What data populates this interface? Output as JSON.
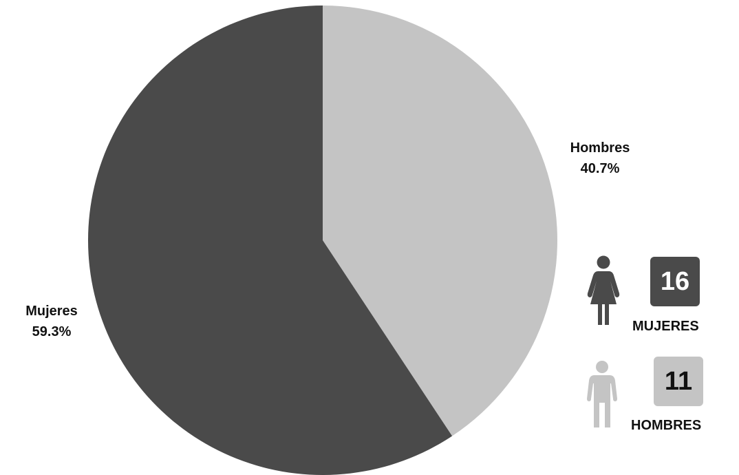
{
  "chart_data": {
    "type": "pie",
    "slices": [
      {
        "label": "Hombres",
        "percent_text": "40.7%",
        "value": 40.7,
        "color": "#c4c4c4"
      },
      {
        "label": "Mujeres",
        "percent_text": "59.3%",
        "value": 59.3,
        "color": "#4a4a4a"
      }
    ],
    "start": "12 o'clock, clockwise"
  },
  "legend": {
    "women": {
      "count": "16",
      "caption": "MUJERES",
      "color": "#4a4a4a",
      "icon": "woman-icon"
    },
    "men": {
      "count": "11",
      "caption": "HOMBRES",
      "color": "#c4c4c4",
      "icon": "man-icon"
    }
  }
}
